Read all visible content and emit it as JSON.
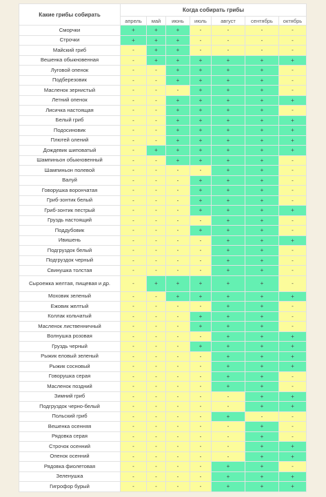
{
  "header": {
    "names_col": "Какие грибы собирать",
    "when_col": "Когда собирать грибы",
    "months": [
      "апрель",
      "май",
      "июнь",
      "июль",
      "август",
      "сентябрь",
      "октябрь"
    ]
  },
  "legend_colors": {
    "plus": "#64f0b2",
    "minus": "#fcfc9b"
  },
  "rows": [
    {
      "name": "Сморчки",
      "marks": [
        "+",
        "+",
        "+",
        "-",
        "-",
        "-",
        "-"
      ]
    },
    {
      "name": "Строчки",
      "marks": [
        "+",
        "+",
        "+",
        "-",
        "-",
        "-",
        "-"
      ]
    },
    {
      "name": "Майский гриб",
      "marks": [
        "-",
        "+",
        "+",
        "-",
        "-",
        "-",
        "-"
      ]
    },
    {
      "name": "Вешенка обыкновенная",
      "marks": [
        "-",
        "+",
        "+",
        "+",
        "+",
        "+",
        "+"
      ]
    },
    {
      "name": "Луговой опенок",
      "marks": [
        "-",
        "-",
        "+",
        "+",
        "+",
        "+",
        "-"
      ]
    },
    {
      "name": "Подберезовик",
      "marks": [
        "-",
        "-",
        "+",
        "+",
        "+",
        "+",
        "-"
      ]
    },
    {
      "name": "Масленок зернистый",
      "marks": [
        "-",
        "-",
        "-",
        "+",
        "+",
        "+",
        "-"
      ]
    },
    {
      "name": "Летний опенок",
      "marks": [
        "-",
        "-",
        "+",
        "+",
        "+",
        "+",
        "+"
      ]
    },
    {
      "name": "Лисичка настоящая",
      "marks": [
        "-",
        "-",
        "+",
        "+",
        "+",
        "+",
        "-"
      ]
    },
    {
      "name": "Белый гриб",
      "marks": [
        "-",
        "-",
        "+",
        "+",
        "+",
        "+",
        "+"
      ]
    },
    {
      "name": "Подосиновик",
      "marks": [
        "-",
        "-",
        "+",
        "+",
        "+",
        "+",
        "+"
      ]
    },
    {
      "name": "Плютей олений",
      "marks": [
        "-",
        "-",
        "+",
        "+",
        "+",
        "+",
        "+"
      ]
    },
    {
      "name": "Дождевик шиповатый",
      "marks": [
        "-",
        "+",
        "+",
        "+",
        "+",
        "+",
        "+"
      ]
    },
    {
      "name": "Шампиньон обыкновенный",
      "marks": [
        "-",
        "-",
        "+",
        "+",
        "+",
        "+",
        "-"
      ]
    },
    {
      "name": "Шампиньон полевой",
      "marks": [
        "-",
        "-",
        "-",
        "-",
        "+",
        "+",
        "-"
      ]
    },
    {
      "name": "Валуй",
      "marks": [
        "-",
        "-",
        "-",
        "+",
        "+",
        "+",
        "-"
      ]
    },
    {
      "name": "Говорушка ворончатая",
      "marks": [
        "-",
        "-",
        "-",
        "+",
        "+",
        "+",
        "-"
      ]
    },
    {
      "name": "Гриб-зонтик белый",
      "marks": [
        "-",
        "-",
        "-",
        "+",
        "+",
        "+",
        "-"
      ]
    },
    {
      "name": "Гриб-зонтик пестрый",
      "marks": [
        "-",
        "-",
        "-",
        "+",
        "+",
        "+",
        "+"
      ]
    },
    {
      "name": "Груздь настоящий",
      "marks": [
        "-",
        "-",
        "-",
        "-",
        "+",
        "+",
        "-"
      ]
    },
    {
      "name": "Поддубовик",
      "marks": [
        "-",
        "-",
        "-",
        "+",
        "+",
        "+",
        "-"
      ]
    },
    {
      "name": "Ивишень",
      "marks": [
        "-",
        "-",
        "-",
        "-",
        "+",
        "+",
        "+"
      ]
    },
    {
      "name": "Подгруздок белый",
      "marks": [
        "-",
        "-",
        "-",
        "-",
        "+",
        "+",
        "-"
      ]
    },
    {
      "name": "Подгруздок черный",
      "marks": [
        "-",
        "-",
        "-",
        "-",
        "+",
        "+",
        "-"
      ]
    },
    {
      "name": "Свинушка толстая",
      "marks": [
        "-",
        "-",
        "-",
        "-",
        "+",
        "+",
        "-"
      ]
    },
    {
      "name": "Сыроежка желтая, пищевая и др.",
      "marks": [
        "-",
        "+",
        "+",
        "+",
        "+",
        "+",
        "-"
      ]
    },
    {
      "name": "Моховик зеленый",
      "marks": [
        "-",
        "-",
        "+",
        "+",
        "+",
        "+",
        "+"
      ]
    },
    {
      "name": "Ежовик желтый",
      "marks": [
        "-",
        "-",
        "-",
        "-",
        "+",
        "+",
        "-"
      ]
    },
    {
      "name": "Коллак кольчатый",
      "marks": [
        "-",
        "-",
        "-",
        "+",
        "+",
        "+",
        "-"
      ]
    },
    {
      "name": "Масленок лиственничный",
      "marks": [
        "-",
        "-",
        "-",
        "+",
        "+",
        "+",
        "-"
      ]
    },
    {
      "name": "Волнушка розовая",
      "marks": [
        "-",
        "-",
        "-",
        "-",
        "+",
        "+",
        "+"
      ]
    },
    {
      "name": "Груздь черный",
      "marks": [
        "-",
        "-",
        "-",
        "+",
        "+",
        "+",
        "+"
      ]
    },
    {
      "name": "Рыжик еловый зеленый",
      "marks": [
        "-",
        "-",
        "-",
        "-",
        "+",
        "+",
        "+"
      ]
    },
    {
      "name": "Рыжик сосновый",
      "marks": [
        "-",
        "-",
        "-",
        "-",
        "+",
        "+",
        "+"
      ]
    },
    {
      "name": "Говорушка серая",
      "marks": [
        "-",
        "-",
        "-",
        "-",
        "+",
        "+",
        "-"
      ]
    },
    {
      "name": "Масленок поздний",
      "marks": [
        "-",
        "-",
        "-",
        "-",
        "+",
        "+",
        "-"
      ]
    },
    {
      "name": "Зимний гриб",
      "marks": [
        "-",
        "-",
        "-",
        "-",
        "-",
        "+",
        "+"
      ]
    },
    {
      "name": "Подгруздок черно-белый",
      "marks": [
        "-",
        "-",
        "-",
        "-",
        "-",
        "+",
        "+"
      ]
    },
    {
      "name": "Польский гриб",
      "marks": [
        "-",
        "-",
        "-",
        "-",
        "+",
        "-",
        "-"
      ]
    },
    {
      "name": "Вешенка осенняя",
      "marks": [
        "-",
        "-",
        "-",
        "-",
        "-",
        "+",
        "-"
      ]
    },
    {
      "name": "Рядовка серая",
      "marks": [
        "-",
        "-",
        "-",
        "-",
        "-",
        "+",
        "-"
      ]
    },
    {
      "name": "Строчок осенний",
      "marks": [
        "-",
        "-",
        "-",
        "-",
        "-",
        "+",
        "+"
      ]
    },
    {
      "name": "Опенок осенний",
      "marks": [
        "-",
        "-",
        "-",
        "-",
        "-",
        "+",
        "+"
      ]
    },
    {
      "name": "Рядовка фиолетовая",
      "marks": [
        "-",
        "-",
        "-",
        "-",
        "+",
        "+",
        "-"
      ]
    },
    {
      "name": "Зеленушка",
      "marks": [
        "-",
        "-",
        "-",
        "-",
        "+",
        "+",
        "+"
      ]
    },
    {
      "name": "Гигрофор бурый",
      "marks": [
        "-",
        "-",
        "-",
        "-",
        "+",
        "+",
        "+"
      ]
    }
  ]
}
